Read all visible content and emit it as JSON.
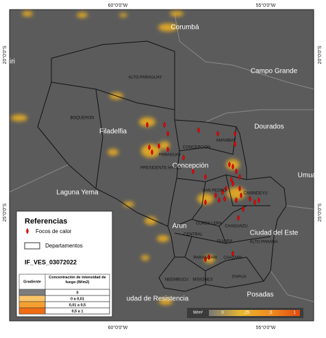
{
  "grid_labels": {
    "top": [
      "60°0'0\"W",
      "55°0'0\"W"
    ],
    "bottom": [
      "60°0'0\"W",
      "55°0'0\"W"
    ],
    "left": [
      "20°0'0\"S",
      "25°0'0\"S"
    ],
    "right": [
      "20°0'0\"S",
      "25°0'0\"S"
    ]
  },
  "places": [
    "Corumbá",
    "Campo Grande",
    "Dourados",
    "Filadelfia",
    "Concepción",
    "Laguna Yema",
    "Umua",
    "Ciudad del Este",
    "Posadas",
    "udad de Resistencia",
    "iri",
    "Arun"
  ],
  "departments": [
    "ALTO PARAGUAY",
    "BOQUERON",
    "CONCEPCION",
    "AMAMBAY",
    "PARAGUAY",
    "PRESIDENTE HAYES",
    "SAN PEDRO",
    "CANINDEYU",
    "CORDILLERA",
    "CAAGUAZU",
    "CENTRAL",
    "GUAIRA",
    "ALTO PARANA",
    "PARAGUARI",
    "CAAZAPA",
    "ITAPUA",
    "MISIONES",
    "NEEMBUCU"
  ],
  "legend": {
    "title": "Referencias",
    "items": [
      "Focos de calor",
      "Departamentos"
    ],
    "layer": "IF_VES_03072022",
    "table": {
      "headers": [
        "Gradiente",
        "Concentración de intensidad de fuego (W/m2)"
      ],
      "rows": [
        "0",
        "0 a 0,01",
        "0,01 a 0,5",
        "0,5 a 1"
      ]
    }
  },
  "color_scale": {
    "unit": "W/m²",
    "labels": [
      "0",
      ",25",
      ",5",
      "1"
    ]
  }
}
